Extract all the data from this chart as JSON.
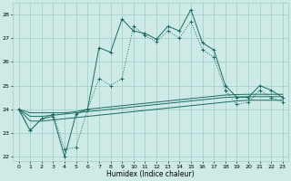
{
  "title": "",
  "xlabel": "Humidex (Indice chaleur)",
  "xlim": [
    -0.5,
    23.5
  ],
  "ylim": [
    21.8,
    28.5
  ],
  "yticks": [
    22,
    23,
    24,
    25,
    26,
    27,
    28
  ],
  "xticks": [
    0,
    1,
    2,
    3,
    4,
    5,
    6,
    7,
    8,
    9,
    10,
    11,
    12,
    13,
    14,
    15,
    16,
    17,
    18,
    19,
    20,
    21,
    22,
    23
  ],
  "bg_color": "#ceeae6",
  "grid_color": "#9fccc7",
  "line_color": "#1a6b5e",
  "series_solid_marker": [
    24.0,
    23.1,
    23.6,
    23.7,
    22.0,
    23.8,
    24.0,
    26.6,
    26.4,
    27.8,
    27.3,
    27.2,
    26.95,
    27.5,
    27.3,
    28.2,
    26.8,
    26.5,
    25.0,
    24.5,
    24.5,
    25.0,
    24.8,
    24.5
  ],
  "series_dotted_marker": [
    24.0,
    23.1,
    23.6,
    23.8,
    22.3,
    22.4,
    24.0,
    25.3,
    25.0,
    25.3,
    27.5,
    27.1,
    26.85,
    27.3,
    27.0,
    27.7,
    26.5,
    26.2,
    24.8,
    24.2,
    24.3,
    24.8,
    24.5,
    24.3
  ],
  "series_line1": [
    24.0,
    23.85,
    23.85,
    23.85,
    23.85,
    23.9,
    24.0,
    24.05,
    24.1,
    24.15,
    24.2,
    24.25,
    24.3,
    24.35,
    24.4,
    24.45,
    24.5,
    24.55,
    24.6,
    24.62,
    24.63,
    24.63,
    24.63,
    24.63
  ],
  "series_line2": [
    24.0,
    23.7,
    23.7,
    23.75,
    23.8,
    23.85,
    23.9,
    23.95,
    24.0,
    24.05,
    24.1,
    24.15,
    24.2,
    24.25,
    24.3,
    24.35,
    24.4,
    24.45,
    24.5,
    24.52,
    24.53,
    24.53,
    24.53,
    24.53
  ],
  "series_line3": [
    24.0,
    23.5,
    23.5,
    23.55,
    23.6,
    23.65,
    23.7,
    23.75,
    23.8,
    23.85,
    23.9,
    23.95,
    24.0,
    24.05,
    24.1,
    24.15,
    24.2,
    24.25,
    24.3,
    24.35,
    24.38,
    24.38,
    24.38,
    24.38
  ]
}
